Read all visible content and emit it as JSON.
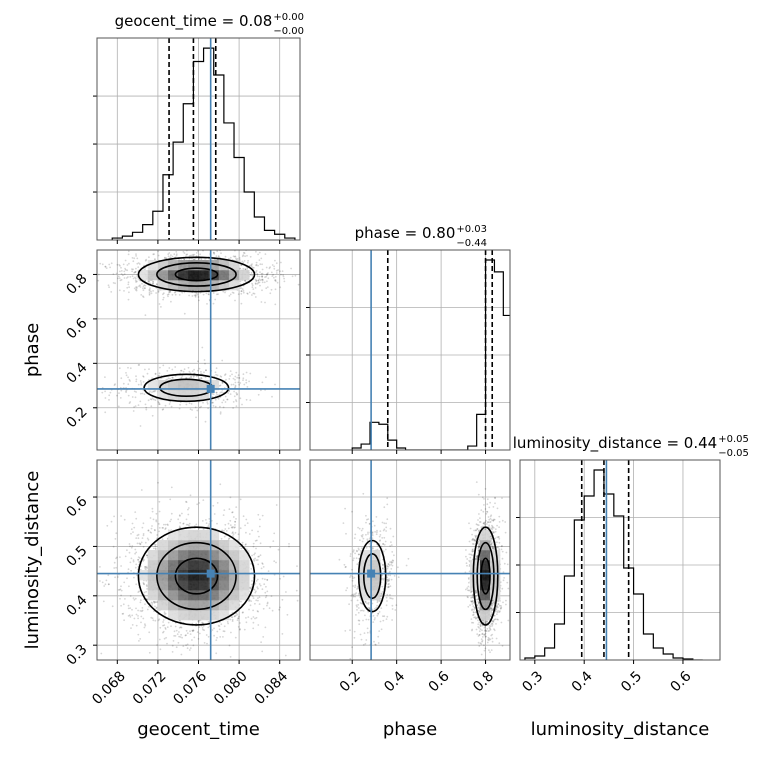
{
  "chart_data": {
    "type": "corner",
    "parameters": [
      "geocent_time",
      "phase",
      "luminosity_distance"
    ],
    "truths": [
      0.0772,
      0.285,
      0.445
    ],
    "colors": {
      "truth": "#4682b4",
      "hist": "#000000",
      "grid": "#b0b0b0"
    },
    "grid": true,
    "titles": [
      {
        "text": "geocent_time = 0.08",
        "sup": "+0.00",
        "sub": "−0.00"
      },
      {
        "text": "phase = 0.80",
        "sup": "+0.03",
        "sub": "−0.44"
      },
      {
        "text": "luminosity_distance = 0.44",
        "sup": "+0.05",
        "sub": "−0.05"
      }
    ],
    "axis_labels": {
      "geocent_time": "geocent_time",
      "phase": "phase",
      "luminosity_distance": "luminosity_distance"
    },
    "ranges": {
      "geocent_time": [
        0.066,
        0.086
      ],
      "phase": [
        0.01,
        0.91
      ],
      "luminosity_distance": [
        0.27,
        0.675
      ]
    },
    "ticks": {
      "geocent_time": [
        "0.068",
        "0.072",
        "0.076",
        "0.080",
        "0.084"
      ],
      "phase": [
        "0.2",
        "0.4",
        "0.6",
        "0.8"
      ],
      "luminosity_distance": [
        "0.3",
        "0.4",
        "0.5",
        "0.6"
      ]
    },
    "quantiles": {
      "geocent_time": [
        0.0731,
        0.0755,
        0.0777
      ],
      "phase": [
        0.36,
        0.8,
        0.83
      ],
      "luminosity_distance": [
        0.395,
        0.44,
        0.49
      ]
    },
    "histograms": {
      "geocent_time": {
        "edges_start": 0.0675,
        "bin_width": 0.001,
        "counts": [
          0.01,
          0.02,
          0.04,
          0.08,
          0.15,
          0.34,
          0.51,
          0.71,
          0.93,
          1.0,
          0.86,
          0.61,
          0.43,
          0.25,
          0.12,
          0.05,
          0.03,
          0.01
        ]
      },
      "phase": {
        "edges_start": 0.2,
        "bin_width": 0.04,
        "counts": [
          0.01,
          0.03,
          0.14,
          0.13,
          0.05,
          0.01,
          0,
          0,
          0,
          0,
          0,
          0,
          0,
          0.02,
          0.18,
          0.96,
          0.9,
          0.68
        ]
      },
      "luminosity_distance": {
        "edges_start": 0.28,
        "bin_width": 0.02,
        "counts": [
          0.01,
          0.02,
          0.06,
          0.18,
          0.42,
          0.7,
          0.82,
          0.95,
          0.83,
          0.72,
          0.46,
          0.33,
          0.13,
          0.06,
          0.03,
          0.01,
          0.005,
          0
        ]
      }
    },
    "modes": {
      "phase": [
        {
          "weight": 0.78,
          "center": [
            0.0758,
            0.8
          ],
          "sd": [
            0.0026,
            0.035
          ]
        },
        {
          "weight": 0.22,
          "center": [
            0.0748,
            0.29
          ],
          "sd": [
            0.0026,
            0.038
          ]
        }
      ],
      "luminosity_distance": [
        {
          "weight": 1.0,
          "center": [
            0.0758,
            0.44
          ],
          "sd": [
            0.0026,
            0.045
          ]
        }
      ]
    }
  }
}
